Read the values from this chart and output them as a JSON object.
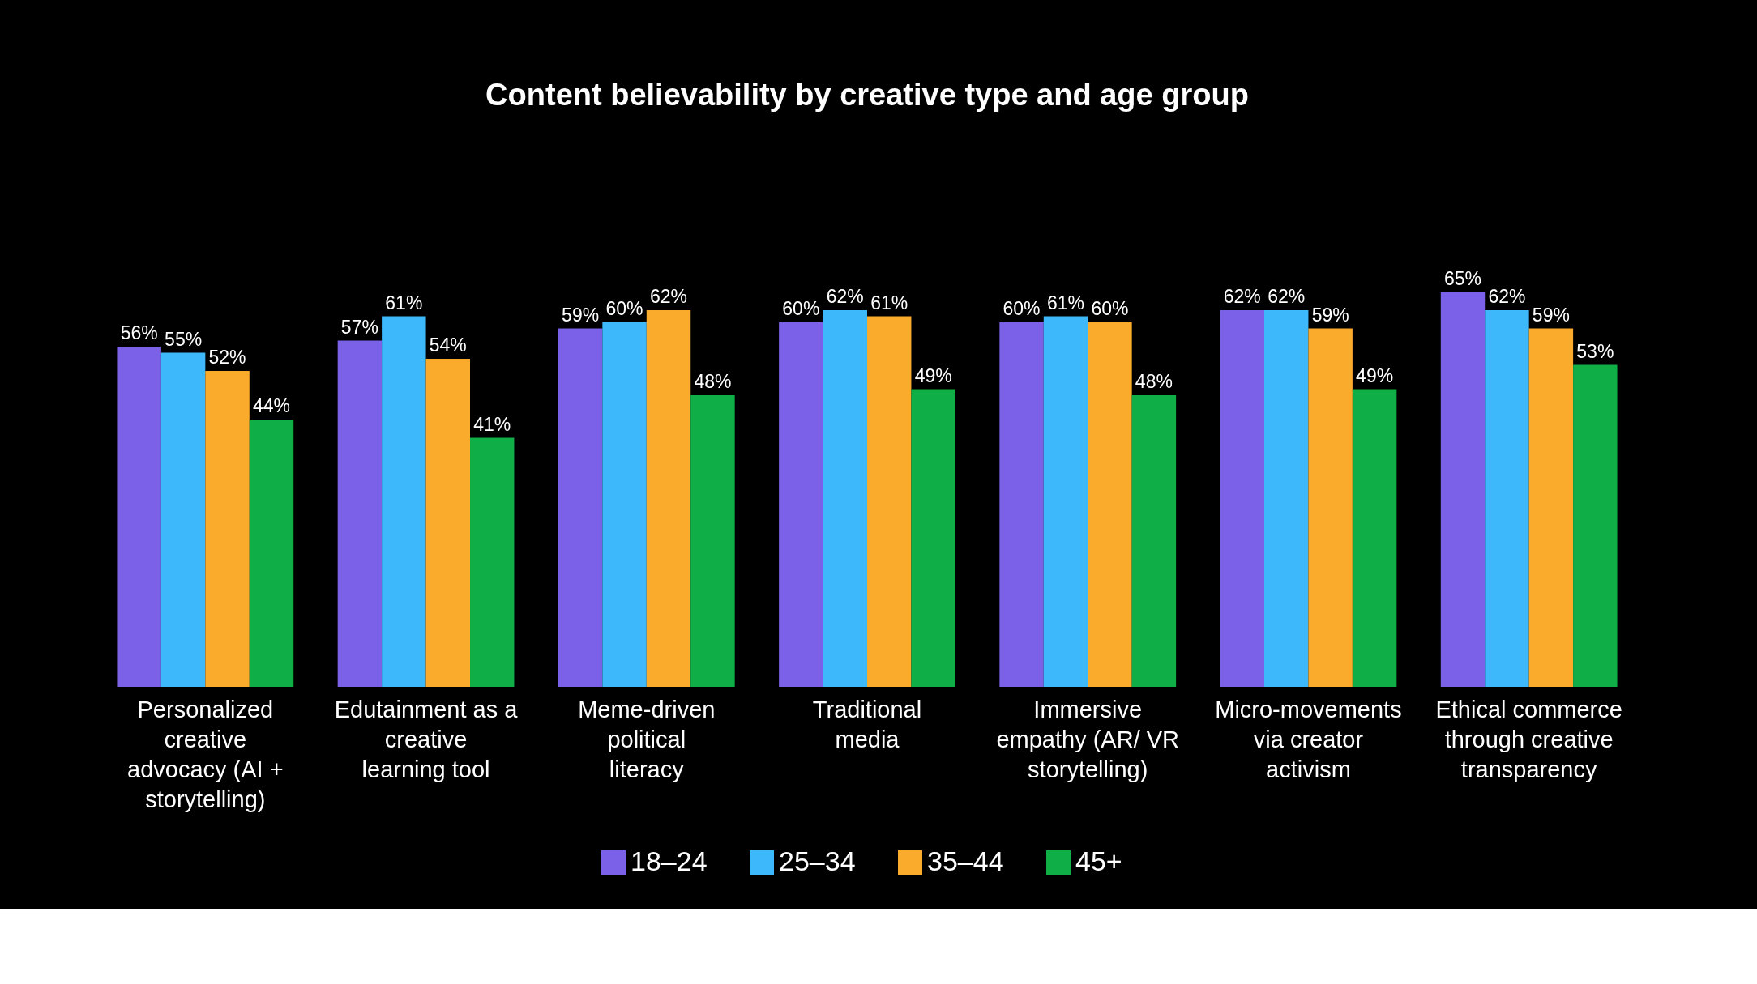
{
  "chart_data": {
    "type": "bar",
    "title": "Content believability by creative type and age group",
    "categories": [
      "Personalized creative advocacy (AI + storytelling)",
      "Edutainment as a creative learning tool",
      "Meme-driven political literacy",
      "Traditional media",
      "Immersive empathy (AR/ VR storytelling)",
      "Micro-movements via creator activism",
      "Ethical commerce through creative transparency"
    ],
    "series": [
      {
        "name": "18–24",
        "color": "#7b61e8",
        "values": [
          56,
          57,
          59,
          60,
          60,
          62,
          65
        ],
        "value_labels": [
          "56%",
          "57%",
          "59%",
          "60%",
          "60%",
          "62%",
          "65%"
        ]
      },
      {
        "name": "25–34",
        "color": "#3db9fb",
        "values": [
          55,
          61,
          60,
          62,
          61,
          62,
          62
        ],
        "value_labels": [
          "55%",
          "61%",
          "60%",
          "62%",
          "61%",
          "62%",
          "62%"
        ]
      },
      {
        "name": "35–44",
        "color": "#fbab2c",
        "values": [
          52,
          54,
          62,
          61,
          60,
          59,
          59
        ],
        "value_labels": [
          "52%",
          "54%",
          "62%",
          "61%",
          "60%",
          "59%",
          "59%"
        ]
      },
      {
        "name": "45+",
        "color": "#0fae47",
        "values": [
          44,
          41,
          48,
          49,
          48,
          49,
          53
        ],
        "value_labels": [
          "44%",
          "41%",
          "48%",
          "49%",
          "48%",
          "49%",
          "53%"
        ]
      }
    ],
    "legend": "bottom",
    "grid": false,
    "tick_labels": "x"
  }
}
